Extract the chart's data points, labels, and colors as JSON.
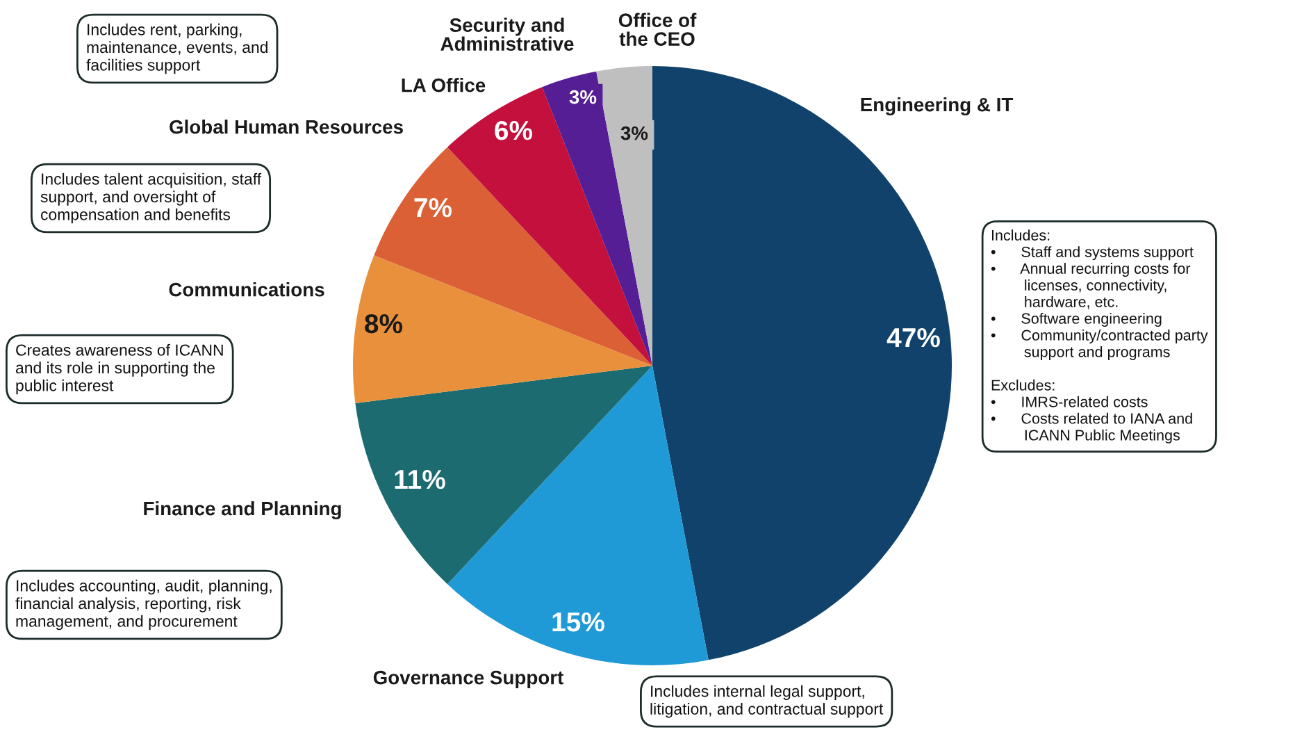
{
  "chart_data": {
    "type": "pie",
    "categories": [
      "Engineering & IT",
      "Governance Support",
      "Finance and Planning",
      "Communications",
      "Global Human Resources",
      "LA Office",
      "Security and\nAdministrative",
      "Office of\nthe CEO"
    ],
    "values": [
      47,
      15,
      11,
      8,
      7,
      6,
      3,
      3
    ],
    "colors": [
      "#10426b",
      "#1f9ad6",
      "#1b6b71",
      "#e8903b",
      "#dc6035",
      "#c3103d",
      "#561e94",
      "#bfbfbf"
    ],
    "value_labels": [
      "47%",
      "15%",
      "11%",
      "8%",
      "7%",
      "6%",
      "3%",
      "3%"
    ],
    "annotations": [
      "Includes:\n•      Staff and systems support\n•      Annual recurring costs for\n        licenses, connectivity,\n        hardware, etc.\n•      Software engineering\n•      Community/contracted party\n        support and programs\n\nExcludes:\n•      IMRS-related costs\n•      Costs related to IANA and\n        ICANN Public Meetings",
      "Includes internal legal support,\nlitigation, and contractual support",
      "Includes accounting, audit, planning,\nfinancial analysis, reporting, risk\nmanagement, and procurement",
      "Creates awareness of ICANN\nand its role in supporting the\npublic interest",
      "Includes talent acquisition, staff\nsupport, and oversight of\ncompensation and benefits",
      "Includes rent, parking,\nmaintenance, events, and\nfacilities support"
    ]
  }
}
